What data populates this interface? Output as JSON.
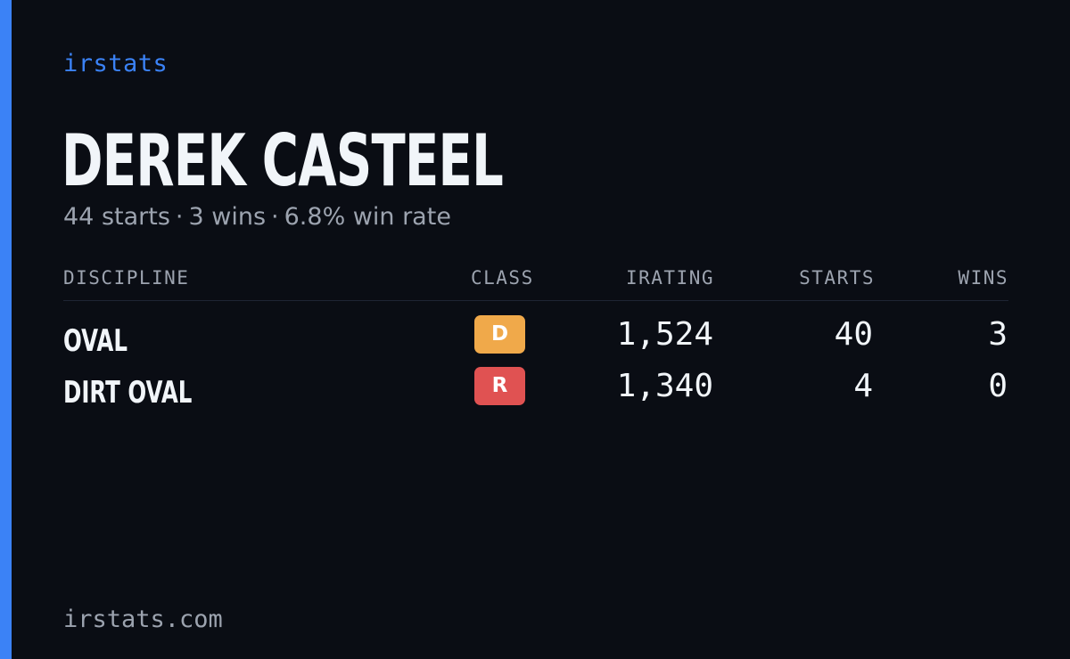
{
  "brand": "irstats",
  "driver": {
    "name": "DEREK CASTEEL",
    "summary": {
      "starts": "44 starts",
      "wins": "3 wins",
      "win_rate": "6.8% win rate",
      "separator": "·"
    }
  },
  "table": {
    "headers": {
      "discipline": "DISCIPLINE",
      "class": "CLASS",
      "irating": "IRATING",
      "starts": "STARTS",
      "wins": "WINS"
    },
    "rows": [
      {
        "discipline": "OVAL",
        "class": "D",
        "class_color": "#f0a94a",
        "irating": "1,524",
        "starts": "40",
        "wins": "3"
      },
      {
        "discipline": "DIRT OVAL",
        "class": "R",
        "class_color": "#e05252",
        "irating": "1,340",
        "starts": "4",
        "wins": "0"
      }
    ]
  },
  "footer": "irstats.com",
  "colors": {
    "background": "#0a0d14",
    "accent": "#3b82f6",
    "text_primary": "#f1f5f9",
    "text_secondary": "#9ca3af"
  }
}
